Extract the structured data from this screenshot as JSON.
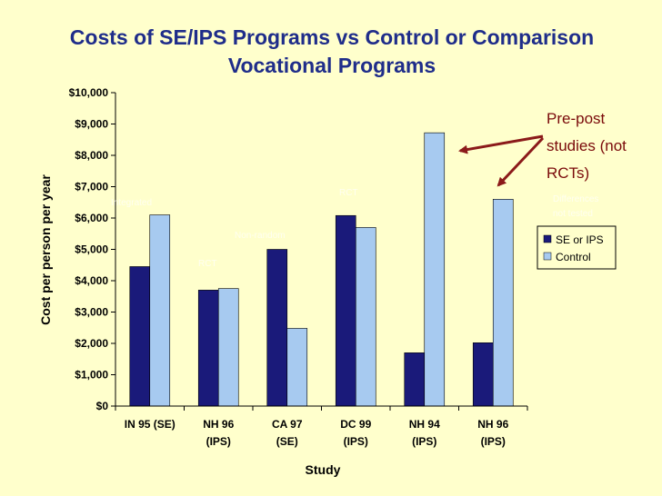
{
  "chart_data": {
    "type": "bar",
    "title_lines": [
      "Costs of SE/IPS Programs vs Control or Comparison",
      "Vocational Programs"
    ],
    "xlabel": "Study",
    "ylabel": "Cost per person per year",
    "ylim": [
      0,
      10000
    ],
    "ytick_step": 1000,
    "ytick_labels": [
      "$0",
      "$1,000",
      "$2,000",
      "$3,000",
      "$4,000",
      "$5,000",
      "$6,000",
      "$7,000",
      "$8,000",
      "$9,000",
      "$10,000"
    ],
    "categories": [
      [
        "IN 95 (SE)"
      ],
      [
        "NH 96",
        "(IPS)"
      ],
      [
        "CA 97",
        "(SE)"
      ],
      [
        "DC 99",
        "(IPS)"
      ],
      [
        "NH 94",
        "(IPS)"
      ],
      [
        "NH 96",
        "(IPS)"
      ]
    ],
    "series": [
      {
        "name": "SE or IPS",
        "color": "#1A1A7A",
        "values": [
          4450,
          3700,
          5000,
          6080,
          1700,
          2020
        ]
      },
      {
        "name": "Control",
        "color": "#A7CAF0",
        "values": [
          6100,
          3750,
          2480,
          5700,
          8720,
          6600
        ]
      }
    ],
    "legend_position": "right",
    "grid": false,
    "annotations": [
      {
        "text_lines": [
          "Pre-post",
          "studies (not",
          "RCTs)"
        ],
        "color": "#7A0A0A"
      }
    ]
  }
}
